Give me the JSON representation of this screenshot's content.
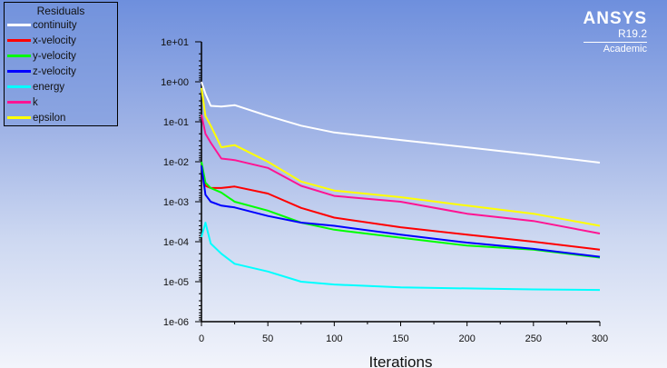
{
  "legend": {
    "title": "Residuals"
  },
  "logo": {
    "brand": "ANSYS",
    "version": "R19.2",
    "edition": "Academic"
  },
  "chart_data": {
    "type": "line",
    "xlabel": "Iterations",
    "ylabel": "",
    "yscale": "log",
    "xlim": [
      0,
      300
    ],
    "ylim": [
      1e-06,
      10
    ],
    "grid": false,
    "legend_position": "top-left",
    "xticks": [
      "0",
      "50",
      "100",
      "150",
      "200",
      "250",
      "300"
    ],
    "yticks": [
      "1e+01",
      "1e+00",
      "1e-01",
      "1e-02",
      "1e-03",
      "1e-04",
      "1e-05",
      "1e-06"
    ],
    "x": [
      0,
      3,
      7,
      15,
      25,
      50,
      75,
      100,
      150,
      200,
      250,
      300
    ],
    "series": [
      {
        "name": "continuity",
        "color": "#ffffff",
        "values": [
          1.0,
          0.5,
          0.25,
          0.24,
          0.26,
          0.14,
          0.08,
          0.054,
          0.035,
          0.023,
          0.015,
          0.0095
        ]
      },
      {
        "name": "x-velocity",
        "color": "#ff0000",
        "values": [
          0.008,
          0.0025,
          0.0022,
          0.0022,
          0.0024,
          0.0016,
          0.0007,
          0.0004,
          0.00023,
          0.00015,
          0.0001,
          6.3e-05
        ]
      },
      {
        "name": "y-velocity",
        "color": "#00ff00",
        "values": [
          0.01,
          0.003,
          0.0022,
          0.0017,
          0.001,
          0.0006,
          0.0003,
          0.0002,
          0.000126,
          8e-05,
          6.3e-05,
          4e-05
        ]
      },
      {
        "name": "z-velocity",
        "color": "#0000ff",
        "values": [
          0.008,
          0.0015,
          0.001,
          0.0008,
          0.00072,
          0.00044,
          0.0003,
          0.00025,
          0.00015,
          9.5e-05,
          6.6e-05,
          4.2e-05
        ]
      },
      {
        "name": "energy",
        "color": "#00ffff",
        "values": [
          0.00013,
          0.0003,
          9e-05,
          5e-05,
          2.8e-05,
          1.8e-05,
          1e-05,
          8.5e-06,
          7.2e-06,
          6.8e-06,
          6.4e-06,
          6.2e-06
        ]
      },
      {
        "name": "k",
        "color": "#ff1493",
        "values": [
          0.15,
          0.05,
          0.03,
          0.012,
          0.011,
          0.007,
          0.0025,
          0.0014,
          0.001,
          0.0005,
          0.00033,
          0.00016
        ]
      },
      {
        "name": "epsilon",
        "color": "#ffff00",
        "values": [
          0.7,
          0.14,
          0.08,
          0.023,
          0.026,
          0.01,
          0.0032,
          0.0019,
          0.0013,
          0.0008,
          0.0005,
          0.00025
        ]
      }
    ]
  }
}
